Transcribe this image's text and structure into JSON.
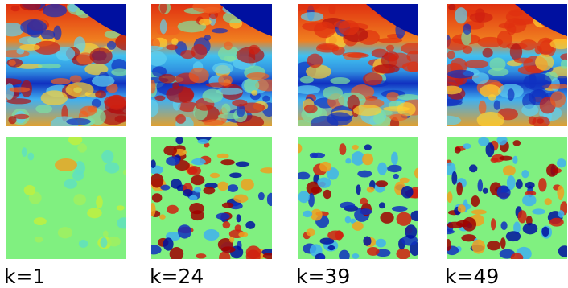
{
  "figure": {
    "labels": [
      "k=1",
      "k=24",
      "k=39",
      "k=49"
    ]
  }
}
